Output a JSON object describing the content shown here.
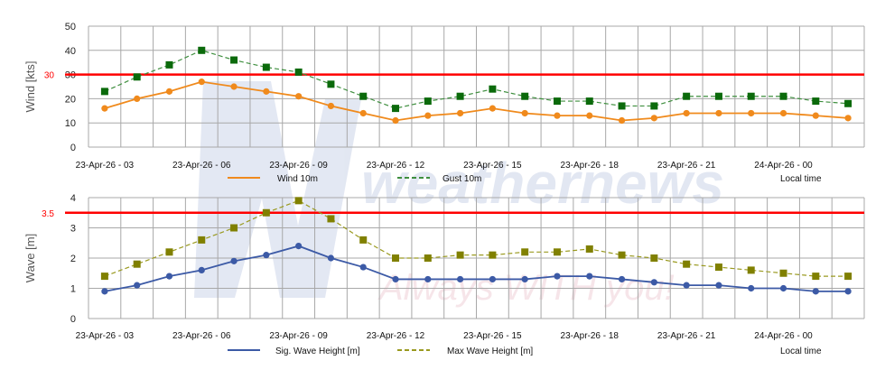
{
  "watermark": {
    "logo": "weathernews",
    "slogan": "Always WITH you!"
  },
  "chart_data": [
    {
      "type": "line",
      "ylabel": "Wind [kts]",
      "ylim": [
        0,
        50
      ],
      "yticks": [
        "0",
        "10",
        "20",
        "30",
        "40",
        "50"
      ],
      "grid": true,
      "legend_placement": "bottom",
      "x_label_note": "Local time",
      "tick_labels": [
        "23-Apr-26 - 03",
        "23-Apr-26 - 06",
        "23-Apr-26 - 09",
        "23-Apr-26 - 12",
        "23-Apr-26 - 15",
        "23-Apr-26 - 18",
        "23-Apr-26 - 21",
        "24-Apr-26 - 00"
      ],
      "threshold": {
        "value": 30,
        "label": "30",
        "color": "#ff0000"
      },
      "series": [
        {
          "name": "Wind 10m",
          "color": "#f08a1c",
          "style": "solid",
          "marker": "circle",
          "values": [
            16,
            20,
            23,
            27,
            25,
            23,
            21,
            17,
            14,
            11,
            13,
            14,
            16,
            14,
            13,
            13,
            11,
            12,
            14,
            14,
            14,
            14,
            13,
            12
          ]
        },
        {
          "name": "Gust 10m",
          "color": "#0b6a0b",
          "style": "dashed",
          "marker": "square",
          "values": [
            23,
            29,
            34,
            40,
            36,
            33,
            31,
            26,
            21,
            16,
            19,
            21,
            24,
            21,
            19,
            19,
            17,
            17,
            21,
            21,
            21,
            21,
            19,
            18
          ]
        }
      ]
    },
    {
      "type": "line",
      "ylabel": "Wave [m]",
      "ylim": [
        0,
        4
      ],
      "yticks": [
        "0",
        "1",
        "2",
        "3",
        "4"
      ],
      "grid": true,
      "legend_placement": "bottom",
      "x_label_note": "Local time",
      "tick_labels": [
        "23-Apr-26 - 03",
        "23-Apr-26 - 06",
        "23-Apr-26 - 09",
        "23-Apr-26 - 12",
        "23-Apr-26 - 15",
        "23-Apr-26 - 18",
        "23-Apr-26 - 21",
        "24-Apr-26 - 00"
      ],
      "threshold": {
        "value": 3.5,
        "label": "3.5",
        "color": "#ff0000"
      },
      "series": [
        {
          "name": "Sig. Wave Height [m]",
          "color": "#3c5aa6",
          "style": "solid",
          "marker": "circle",
          "values": [
            0.9,
            1.1,
            1.4,
            1.6,
            1.9,
            2.1,
            2.4,
            2.0,
            1.7,
            1.3,
            1.3,
            1.3,
            1.3,
            1.3,
            1.4,
            1.4,
            1.3,
            1.2,
            1.1,
            1.1,
            1.0,
            1.0,
            0.9,
            0.9
          ]
        },
        {
          "name": "Max Wave Height [m]",
          "color": "#808000",
          "style": "dashed",
          "marker": "square",
          "values": [
            1.4,
            1.8,
            2.2,
            2.6,
            3.0,
            3.5,
            3.9,
            3.3,
            2.6,
            2.0,
            2.0,
            2.1,
            2.1,
            2.2,
            2.2,
            2.3,
            2.1,
            2.0,
            1.8,
            1.7,
            1.6,
            1.5,
            1.4,
            1.4
          ]
        }
      ]
    }
  ]
}
